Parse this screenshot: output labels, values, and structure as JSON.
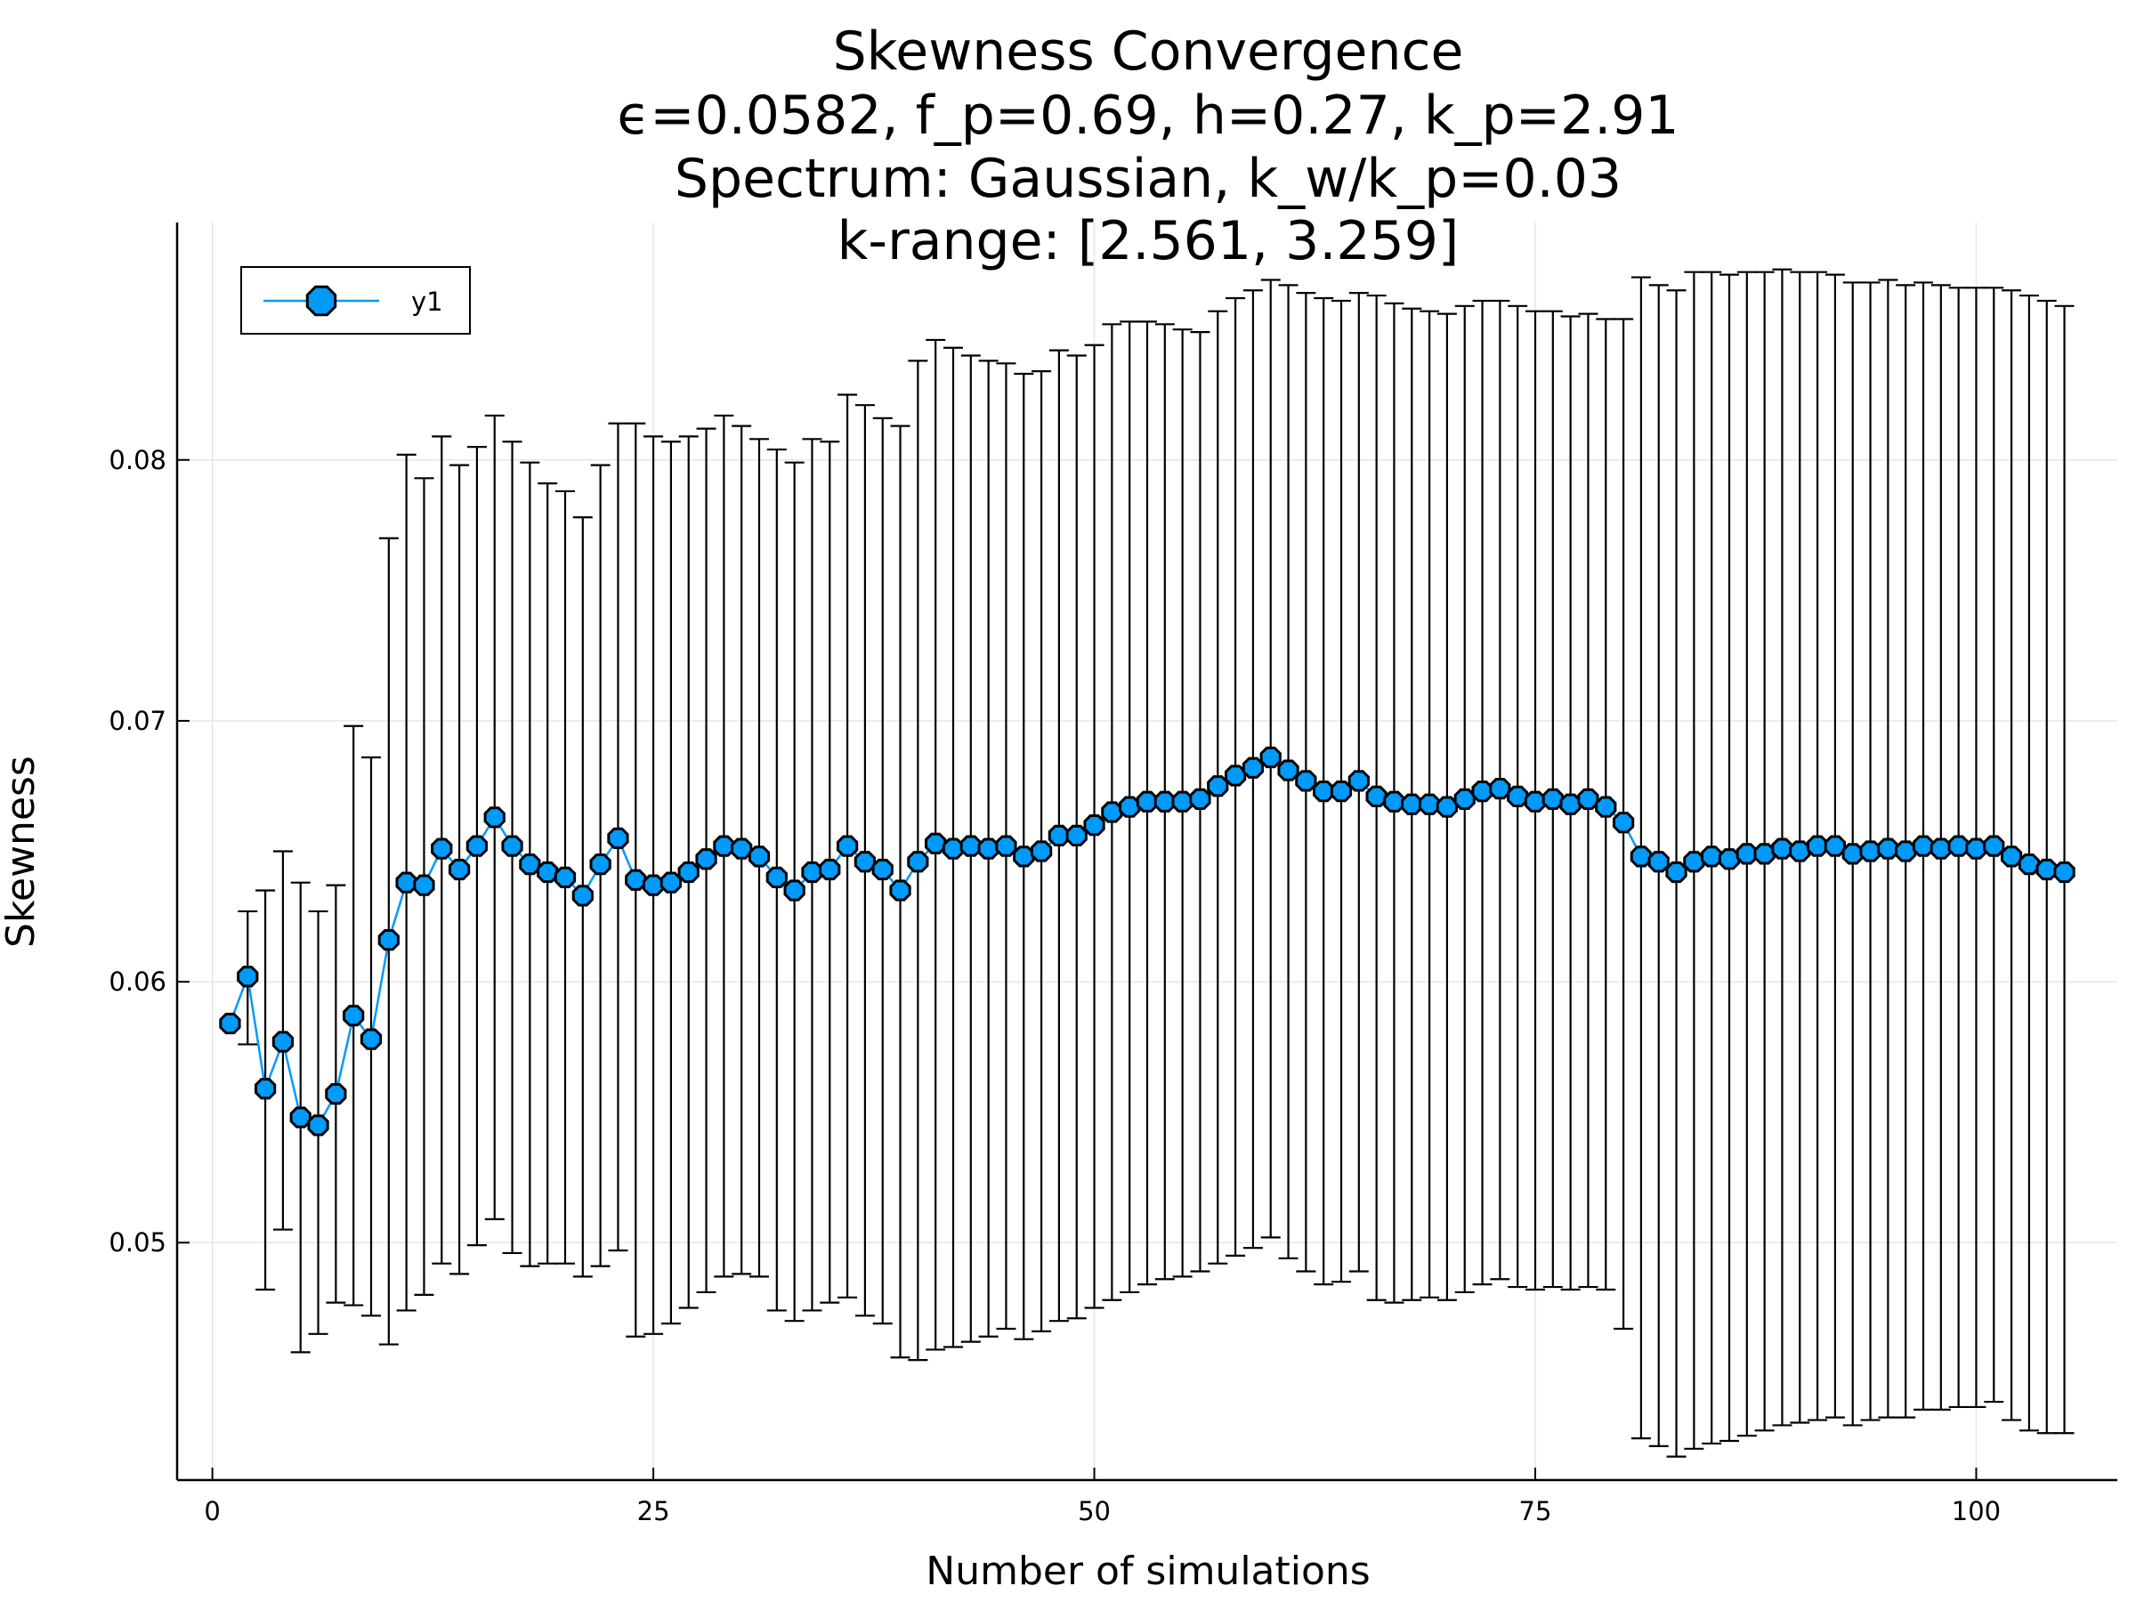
{
  "chart_data": {
    "type": "line",
    "title_lines": [
      "Skewness Convergence",
      "ϵ=0.0582, f_p=0.69, h=0.27, k_p=2.91",
      "Spectrum: Gaussian, k_w/k_p=0.03",
      "k-range: [2.561, 3.259]"
    ],
    "xlabel": "Number of simulations",
    "ylabel": "Skewness",
    "xlim": [
      -2,
      108
    ],
    "ylim": [
      0.0409,
      0.0891
    ],
    "x_ticks": [
      0,
      25,
      50,
      75,
      100
    ],
    "x_tick_labels": [
      "0",
      "25",
      "50",
      "75",
      "100"
    ],
    "y_ticks": [
      0.05,
      0.06,
      0.07,
      0.08
    ],
    "y_tick_labels": [
      "0.05",
      "0.06",
      "0.07",
      "0.08"
    ],
    "grid": true,
    "legend_position": "top-left",
    "colors": {
      "series": "#009AFA",
      "errorbar": "#000000",
      "grid": "#e6e6e6"
    },
    "series": [
      {
        "name": "y1",
        "x": [
          1,
          2,
          3,
          4,
          5,
          6,
          7,
          8,
          9,
          10,
          11,
          12,
          13,
          14,
          15,
          16,
          17,
          18,
          19,
          20,
          21,
          22,
          23,
          24,
          25,
          26,
          27,
          28,
          29,
          30,
          31,
          32,
          33,
          34,
          35,
          36,
          37,
          38,
          39,
          40,
          41,
          42,
          43,
          44,
          45,
          46,
          47,
          48,
          49,
          50,
          51,
          52,
          53,
          54,
          55,
          56,
          57,
          58,
          59,
          60,
          61,
          62,
          63,
          64,
          65,
          66,
          67,
          68,
          69,
          70,
          71,
          72,
          73,
          74,
          75,
          76,
          77,
          78,
          79,
          80,
          81,
          82,
          83,
          84,
          85,
          86,
          87,
          88,
          89,
          90,
          91,
          92,
          93,
          94,
          95,
          96,
          97,
          98,
          99,
          100,
          101,
          102,
          103,
          104,
          105
        ],
        "y": [
          0.0584,
          0.0602,
          0.0559,
          0.0577,
          0.0548,
          0.0545,
          0.0557,
          0.0587,
          0.0578,
          0.0616,
          0.0638,
          0.0637,
          0.0651,
          0.0643,
          0.0652,
          0.0663,
          0.0652,
          0.0645,
          0.0642,
          0.064,
          0.0633,
          0.0645,
          0.0655,
          0.0639,
          0.0637,
          0.0638,
          0.0642,
          0.0647,
          0.0652,
          0.0651,
          0.0648,
          0.064,
          0.0635,
          0.0642,
          0.0643,
          0.0652,
          0.0646,
          0.0643,
          0.0635,
          0.0646,
          0.0653,
          0.0651,
          0.0652,
          0.0651,
          0.0652,
          0.0648,
          0.065,
          0.0656,
          0.0656,
          0.066,
          0.0665,
          0.0667,
          0.0669,
          0.0669,
          0.0669,
          0.067,
          0.0675,
          0.0679,
          0.0682,
          0.0686,
          0.0681,
          0.0677,
          0.0673,
          0.0673,
          0.0677,
          0.0671,
          0.0669,
          0.0668,
          0.0668,
          0.0667,
          0.067,
          0.0673,
          0.0674,
          0.0671,
          0.0669,
          0.067,
          0.0668,
          0.067,
          0.0667,
          0.0661,
          0.0648,
          0.0646,
          0.0642,
          0.0646,
          0.0648,
          0.0647,
          0.0649,
          0.0649,
          0.0651,
          0.065,
          0.0652,
          0.0652,
          0.0649,
          0.065,
          0.0651,
          0.065,
          0.0652,
          0.0651,
          0.0652,
          0.0651,
          0.0652,
          0.0648,
          0.0645,
          0.0643,
          0.0642
        ],
        "err_low": [
          null,
          0.0576,
          0.0482,
          0.0505,
          0.0458,
          0.0465,
          0.0477,
          0.0476,
          0.0472,
          0.0461,
          0.0474,
          0.048,
          0.0492,
          0.0488,
          0.0499,
          0.0509,
          0.0496,
          0.0491,
          0.0492,
          0.0492,
          0.0487,
          0.0491,
          0.0497,
          0.0464,
          0.0465,
          0.0469,
          0.0475,
          0.0481,
          0.0487,
          0.0488,
          0.0487,
          0.0474,
          0.047,
          0.0474,
          0.0477,
          0.0479,
          0.0472,
          0.0469,
          0.0456,
          0.0455,
          0.0459,
          0.046,
          0.0462,
          0.0464,
          0.0467,
          0.0463,
          0.0466,
          0.047,
          0.0471,
          0.0475,
          0.0478,
          0.0481,
          0.0484,
          0.0486,
          0.0487,
          0.0489,
          0.0492,
          0.0495,
          0.0498,
          0.0502,
          0.0494,
          0.0489,
          0.0484,
          0.0485,
          0.0489,
          0.0478,
          0.0477,
          0.0478,
          0.0479,
          0.0478,
          0.0481,
          0.0484,
          0.0486,
          0.0483,
          0.0482,
          0.0483,
          0.0482,
          0.0483,
          0.0482,
          0.0467,
          0.0425,
          0.0422,
          0.0418,
          0.0421,
          0.0423,
          0.0424,
          0.0426,
          0.0428,
          0.043,
          0.0431,
          0.0432,
          0.0433,
          0.043,
          0.0432,
          0.0433,
          0.0433,
          0.0436,
          0.0436,
          0.0437,
          0.0437,
          0.0439,
          0.0432,
          0.0428,
          0.0427,
          0.0427
        ],
        "err_high": [
          null,
          0.0627,
          0.0635,
          0.065,
          0.0638,
          0.0627,
          0.0637,
          0.0698,
          0.0686,
          0.077,
          0.0802,
          0.0793,
          0.0809,
          0.0798,
          0.0805,
          0.0817,
          0.0807,
          0.0799,
          0.0791,
          0.0788,
          0.0778,
          0.0798,
          0.0814,
          0.0814,
          0.0809,
          0.0807,
          0.0809,
          0.0812,
          0.0817,
          0.0813,
          0.0808,
          0.0804,
          0.0799,
          0.0808,
          0.0807,
          0.0825,
          0.0821,
          0.0816,
          0.0813,
          0.0838,
          0.0846,
          0.0843,
          0.084,
          0.0838,
          0.0837,
          0.0833,
          0.0834,
          0.0842,
          0.084,
          0.0844,
          0.0852,
          0.0853,
          0.0853,
          0.0852,
          0.085,
          0.0849,
          0.0857,
          0.0862,
          0.0865,
          0.0869,
          0.0867,
          0.0864,
          0.0862,
          0.0861,
          0.0864,
          0.0863,
          0.086,
          0.0858,
          0.0857,
          0.0856,
          0.0859,
          0.0861,
          0.0861,
          0.0859,
          0.0857,
          0.0857,
          0.0855,
          0.0856,
          0.0854,
          0.0854,
          0.087,
          0.0867,
          0.0865,
          0.0872,
          0.0872,
          0.0871,
          0.0872,
          0.0872,
          0.0873,
          0.0872,
          0.0872,
          0.0871,
          0.0868,
          0.0868,
          0.0869,
          0.0867,
          0.0868,
          0.0867,
          0.0866,
          0.0866,
          0.0866,
          0.0865,
          0.0863,
          0.0861,
          0.0859
        ]
      }
    ]
  }
}
